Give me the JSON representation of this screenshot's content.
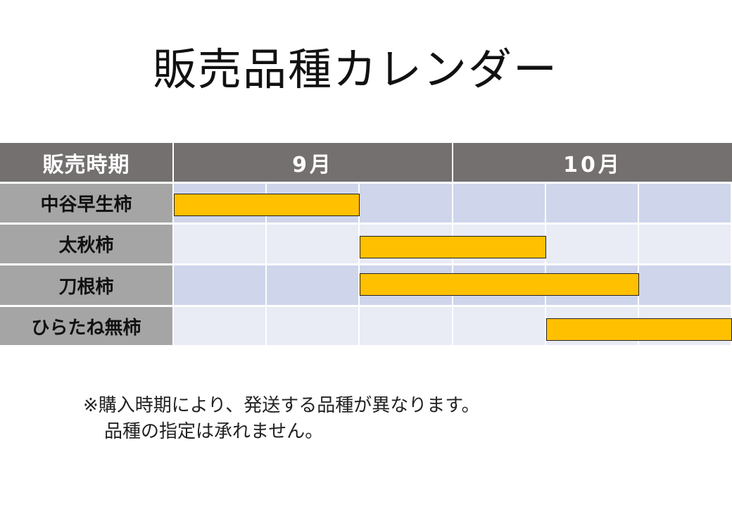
{
  "title": "販売品種カレンダー",
  "chart_data": {
    "type": "table",
    "header_label": "販売時期",
    "months": [
      "9月",
      "10月"
    ],
    "periods_per_month": 3,
    "rows": [
      {
        "name": "中谷早生柿",
        "start": 0,
        "end": 2
      },
      {
        "name": "太秋柿",
        "start": 2,
        "end": 4
      },
      {
        "name": "刀根柿",
        "start": 2,
        "end": 5
      },
      {
        "name": "ひらたね無柿",
        "start": 4,
        "end": 6
      }
    ],
    "colors": {
      "header": "#757070",
      "row_label": "#a5a5a5",
      "band_dark": "#cfd5ea",
      "band_light": "#e9ebf5",
      "bar": "#ffc000"
    }
  },
  "note": {
    "line1": "※購入時期により、発送する品種が異なります。",
    "line2": "品種の指定は承れません。"
  }
}
